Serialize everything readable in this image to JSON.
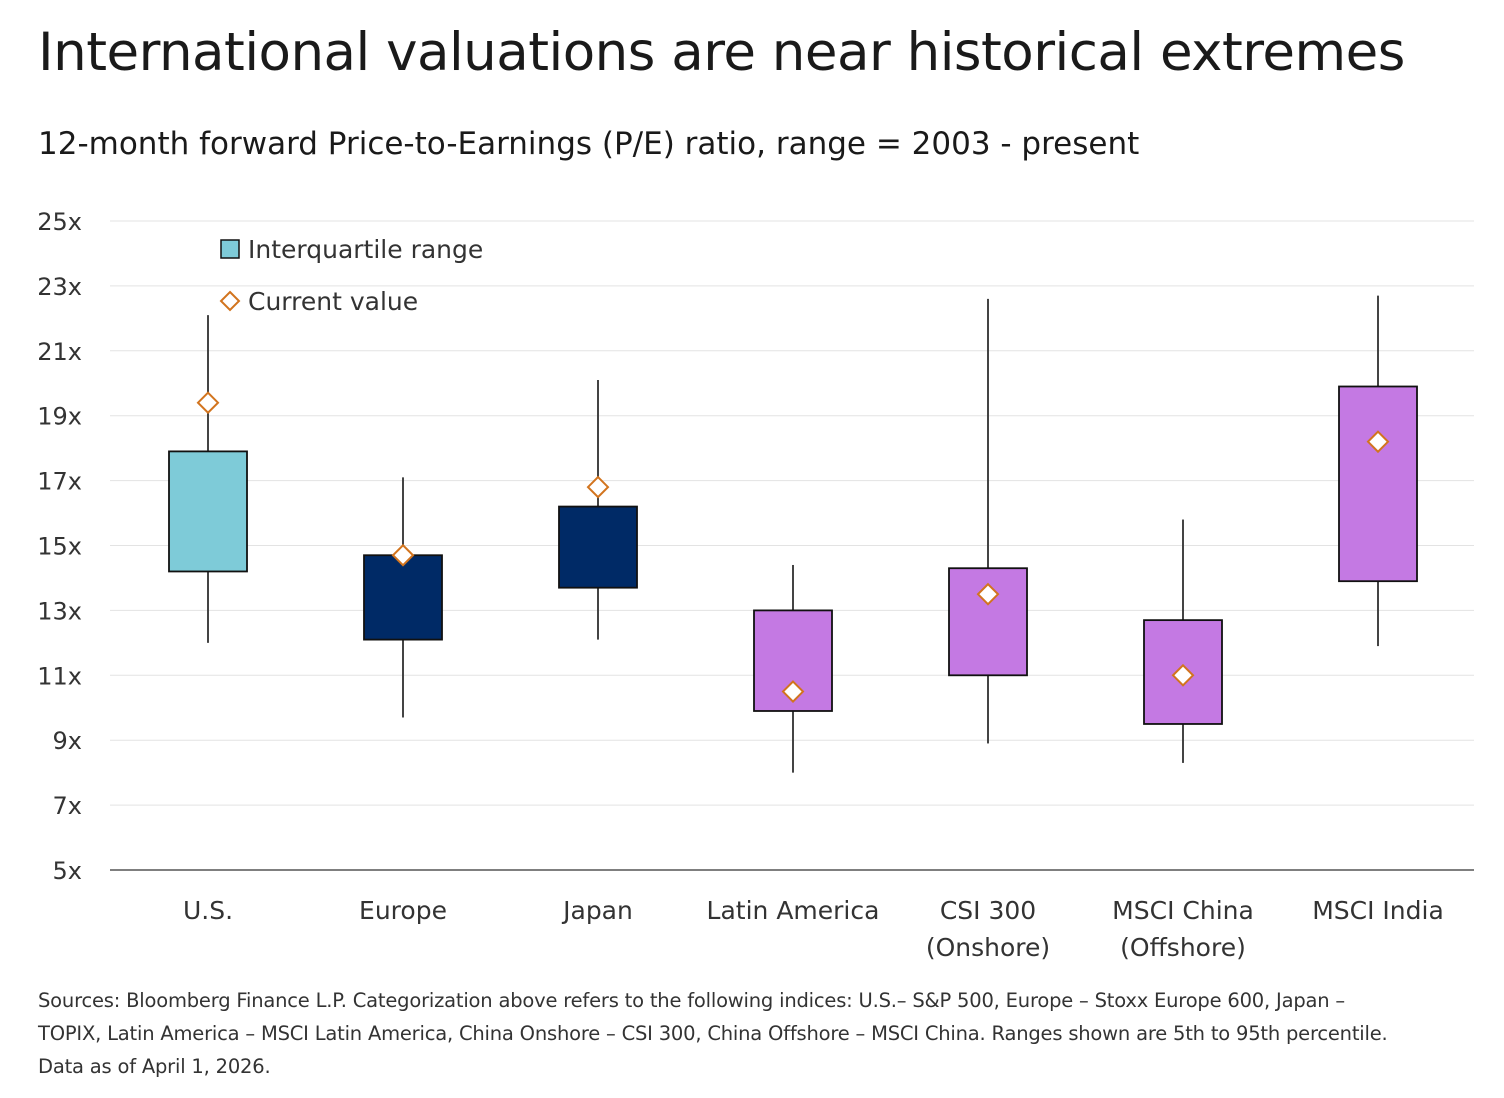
{
  "title": "International valuations are near historical extremes",
  "subtitle": "12-month forward Price-to-Earnings (P/E) ratio, range = 2003 - present",
  "footnote": [
    "Sources: Bloomberg Finance L.P. Categorization above refers to the following indices: U.S.– S&P 500, Europe – Stoxx Europe 600, Japan –",
    "TOPIX, Latin America – MSCI Latin America, China Onshore – CSI 300, China Offshore – MSCI China. Ranges shown are 5th to 95th percentile.",
    "Data as of April 1, 2026."
  ],
  "colors": {
    "us_box": "#7ecbd8",
    "developed_box": "#002a66",
    "emerging_box": "#c479e3",
    "marker_stroke": "#d2741e",
    "whisker": "#444444",
    "grid": "#e3e3e3"
  },
  "chart_data": {
    "type": "box",
    "title": "International valuations are near historical extremes",
    "subtitle": "12-month forward Price-to-Earnings (P/E) ratio, range = 2003 - present",
    "ylim": [
      5,
      25
    ],
    "yticks": [
      "5x",
      "7x",
      "9x",
      "11x",
      "13x",
      "15x",
      "17x",
      "19x",
      "21x",
      "23x",
      "25x"
    ],
    "ytick_values": [
      5,
      7,
      9,
      11,
      13,
      15,
      17,
      19,
      21,
      23,
      25
    ],
    "grid": true,
    "legend_position": "top-left",
    "legend": [
      {
        "label": "Interquartile range",
        "symbol": "box",
        "color": "#7ecbd8"
      },
      {
        "label": "Current value",
        "symbol": "diamond",
        "color": "#d2741e"
      }
    ],
    "categories": [
      {
        "label": [
          "U.S."
        ],
        "low": 12.0,
        "q1": 14.2,
        "q3": 17.9,
        "high": 22.1,
        "current": 19.4,
        "color": "#7ecbd8"
      },
      {
        "label": [
          "Europe"
        ],
        "low": 9.7,
        "q1": 12.1,
        "q3": 14.7,
        "high": 17.1,
        "current": 14.7,
        "color": "#002a66"
      },
      {
        "label": [
          "Japan"
        ],
        "low": 12.1,
        "q1": 13.7,
        "q3": 16.2,
        "high": 20.1,
        "current": 16.8,
        "color": "#002a66"
      },
      {
        "label": [
          "Latin America"
        ],
        "low": 8.0,
        "q1": 9.9,
        "q3": 13.0,
        "high": 14.4,
        "current": 10.5,
        "color": "#c479e3"
      },
      {
        "label": [
          "CSI 300",
          "(Onshore)"
        ],
        "low": 8.9,
        "q1": 11.0,
        "q3": 14.3,
        "high": 22.6,
        "current": 13.5,
        "color": "#c479e3"
      },
      {
        "label": [
          "MSCI China",
          "(Offshore)"
        ],
        "low": 8.3,
        "q1": 9.5,
        "q3": 12.7,
        "high": 15.8,
        "current": 11.0,
        "color": "#c479e3"
      },
      {
        "label": [
          "MSCI India"
        ],
        "low": 11.9,
        "q1": 13.9,
        "q3": 19.9,
        "high": 22.7,
        "current": 18.2,
        "color": "#c479e3"
      }
    ]
  }
}
